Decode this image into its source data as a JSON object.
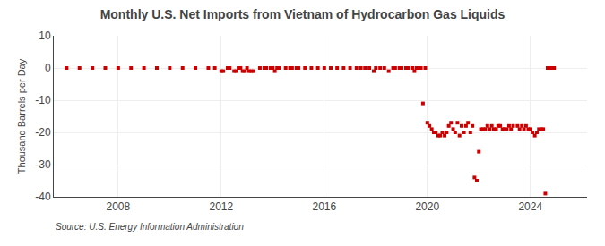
{
  "chart_data": {
    "type": "scatter",
    "title": "Monthly U.S. Net Imports from Vietnam of Hydrocarbon Gas Liquids",
    "ylabel": "Thousand Barrels per Day",
    "source": "Source: U.S. Energy Information Administration",
    "color": "#cc0000",
    "marker": "square",
    "grid": true,
    "xlim": [
      2005.5,
      2026.2
    ],
    "xticks": [
      2008,
      2012,
      2016,
      2020,
      2024
    ],
    "ylim": [
      -40,
      10
    ],
    "yticks": [
      -40,
      -30,
      -20,
      -10,
      0,
      10
    ],
    "x": [
      2006.0,
      2006.5,
      2007.0,
      2007.5,
      2008.0,
      2008.5,
      2009.0,
      2009.5,
      2010.0,
      2010.5,
      2011.0,
      2011.5,
      2011.75,
      2012.0,
      2012.08,
      2012.25,
      2012.33,
      2012.5,
      2012.58,
      2012.67,
      2012.75,
      2012.83,
      2012.92,
      2013.0,
      2013.08,
      2013.17,
      2013.25,
      2013.5,
      2013.67,
      2013.75,
      2013.92,
      2014.0,
      2014.08,
      2014.17,
      2014.25,
      2014.5,
      2014.67,
      2014.75,
      2014.92,
      2015.0,
      2015.25,
      2015.5,
      2015.75,
      2016.0,
      2016.25,
      2016.5,
      2016.75,
      2017.0,
      2017.25,
      2017.42,
      2017.58,
      2017.75,
      2017.92,
      2018.0,
      2018.17,
      2018.33,
      2018.5,
      2018.67,
      2018.75,
      2018.92,
      2019.0,
      2019.17,
      2019.25,
      2019.42,
      2019.5,
      2019.58,
      2019.67,
      2019.75,
      2019.83,
      2019.92,
      2020.0,
      2020.08,
      2020.17,
      2020.25,
      2020.33,
      2020.42,
      2020.5,
      2020.58,
      2020.67,
      2020.75,
      2020.83,
      2020.92,
      2021.0,
      2021.08,
      2021.17,
      2021.25,
      2021.33,
      2021.42,
      2021.5,
      2021.58,
      2021.67,
      2021.75,
      2021.83,
      2021.92,
      2022.0,
      2022.08,
      2022.17,
      2022.25,
      2022.33,
      2022.42,
      2022.5,
      2022.58,
      2022.67,
      2022.75,
      2022.83,
      2022.92,
      2023.0,
      2023.08,
      2023.17,
      2023.25,
      2023.33,
      2023.5,
      2023.58,
      2023.67,
      2023.75,
      2023.83,
      2023.92,
      2024.0,
      2024.08,
      2024.17,
      2024.25,
      2024.33,
      2024.42,
      2024.5,
      2024.58,
      2024.67,
      2024.75,
      2024.83,
      2024.92
    ],
    "values": [
      0,
      0,
      0,
      0,
      0,
      0,
      0,
      0,
      0,
      0,
      0,
      0,
      0,
      -1,
      -1,
      0,
      0,
      -1,
      -1,
      0,
      0,
      -1,
      -1,
      0,
      -1,
      -1,
      -1,
      0,
      0,
      0,
      0,
      0,
      -1,
      0,
      0,
      0,
      0,
      0,
      0,
      0,
      0,
      0,
      0,
      0,
      0,
      0,
      0,
      0,
      0,
      0,
      0,
      0,
      -1,
      0,
      0,
      0,
      -1,
      0,
      0,
      0,
      0,
      0,
      0,
      0,
      -1,
      0,
      0,
      0,
      -11,
      0,
      -17,
      -18,
      -19,
      -20,
      -20,
      -21,
      -21,
      -20,
      -21,
      -20,
      -18,
      -17,
      -19,
      -20,
      -17,
      -21,
      -18,
      -20,
      -18,
      -17,
      -20,
      -18,
      -34,
      -35,
      -26,
      -19,
      -19,
      -19,
      -18,
      -19,
      -18,
      -19,
      -19,
      -18,
      -18,
      -19,
      -19,
      -19,
      -18,
      -19,
      -18,
      -18,
      -19,
      -18,
      -19,
      -18,
      -19,
      -19,
      -20,
      -21,
      -20,
      -19,
      -19,
      -19,
      -39,
      0,
      0,
      0,
      0
    ]
  }
}
